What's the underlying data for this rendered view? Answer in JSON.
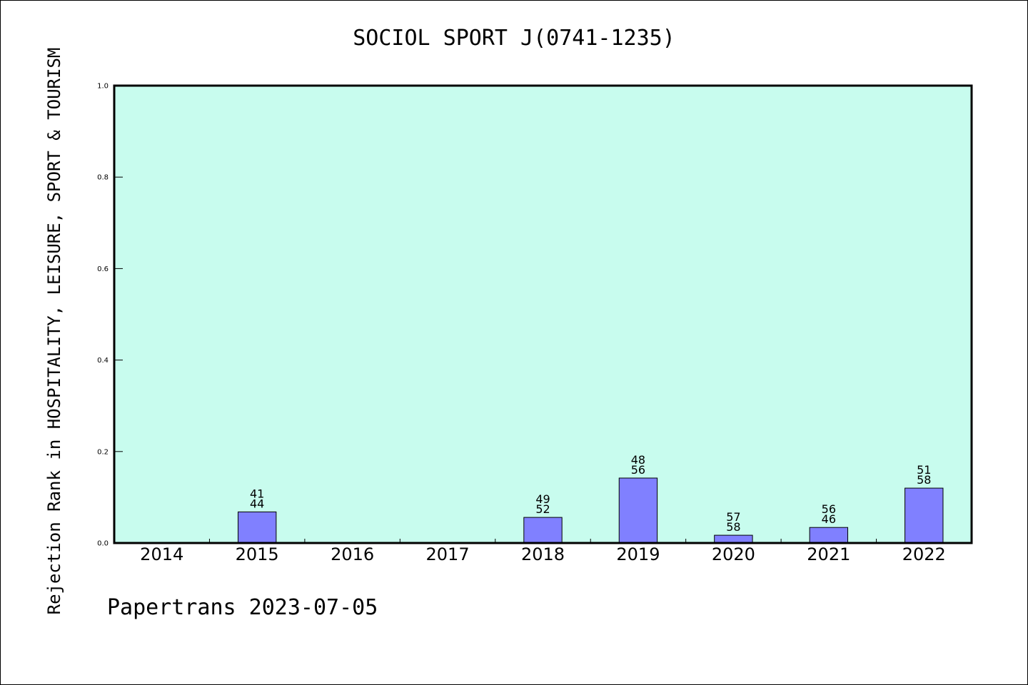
{
  "chart_data": {
    "type": "bar",
    "title": "SOCIOL SPORT J(0741-1235)",
    "ylabel": "Rejection Rank in HOSPITALITY, LEISURE, SPORT & TOURISM",
    "xlabel": "",
    "categories": [
      "2014",
      "2015",
      "2016",
      "2017",
      "2018",
      "2019",
      "2020",
      "2021",
      "2022"
    ],
    "values": [
      0,
      0.068,
      0,
      0,
      0.056,
      0.142,
      0.017,
      0.034,
      0.12
    ],
    "bar_labels": [
      null,
      [
        "41",
        "44"
      ],
      null,
      null,
      [
        "49",
        "52"
      ],
      [
        "48",
        "56"
      ],
      [
        "57",
        "58"
      ],
      [
        "56",
        "46"
      ],
      [
        "51",
        "58"
      ]
    ],
    "ylim": [
      0,
      1.0
    ],
    "yticks": [
      "0.0",
      "0.2",
      "0.4",
      "0.6",
      "0.8",
      "1.0"
    ],
    "grid": false,
    "colors": {
      "plot_bg": "#c8fcee",
      "bar": "#8080ff",
      "axis": "#000000"
    }
  },
  "footer": "Papertrans 2023-07-05"
}
